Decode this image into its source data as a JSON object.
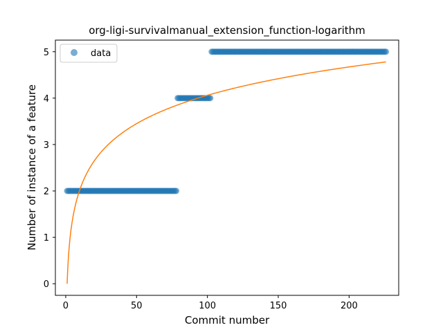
{
  "chart_data": {
    "type": "scatter",
    "title": "org-ligi-survivalmanual_extension_function-logarithm",
    "xlabel": "Commit number",
    "ylabel": "Number of instance of a feature",
    "xlim": [
      -7.3,
      235
    ],
    "ylim": [
      -0.25,
      5.25
    ],
    "xticks": [
      0,
      50,
      100,
      150,
      200
    ],
    "yticks": [
      0,
      1,
      2,
      3,
      4,
      5
    ],
    "grid": false,
    "legend": {
      "placement": "upper-left",
      "entries": [
        "data"
      ]
    },
    "colors": {
      "data": "#1f77b4",
      "fit": "#ff7f0e"
    },
    "series": [
      {
        "name": "data",
        "kind": "points",
        "segments": [
          {
            "x_start": 1,
            "x_end": 78,
            "y": 2
          },
          {
            "x_start": 79,
            "x_end": 102,
            "y": 4
          },
          {
            "x_start": 103,
            "x_end": 226,
            "y": 5
          }
        ]
      },
      {
        "kind": "line",
        "function": "logarithmic fit",
        "x_range": [
          1,
          226
        ],
        "y_at_x_start": 0,
        "y_at_x_end": 4.78
      }
    ]
  }
}
